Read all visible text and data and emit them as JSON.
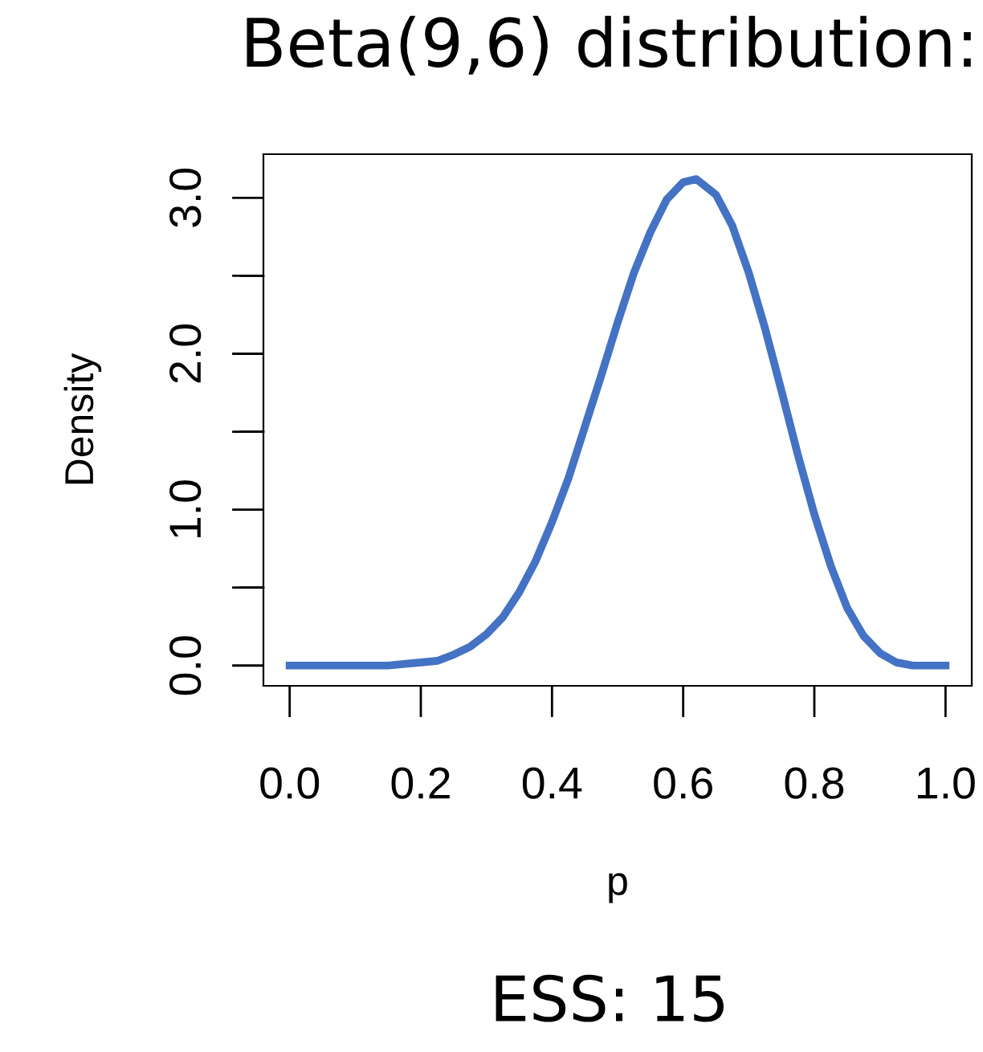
{
  "chart_data": {
    "type": "line",
    "title": "Beta(9,6) distribution:",
    "xlabel": "p",
    "ylabel": "Density",
    "annotations": [
      "ESS: 15"
    ],
    "x": [
      0,
      0.05,
      0.1,
      0.15,
      0.2,
      0.225,
      0.25,
      0.275,
      0.3,
      0.325,
      0.35,
      0.375,
      0.4,
      0.425,
      0.45,
      0.475,
      0.5,
      0.525,
      0.55,
      0.575,
      0.6,
      0.62,
      0.65,
      0.675,
      0.7,
      0.725,
      0.75,
      0.775,
      0.8,
      0.825,
      0.85,
      0.875,
      0.9,
      0.925,
      0.95,
      1.0
    ],
    "series": [
      {
        "color": "#4472c4",
        "values": [
          0,
          0,
          0,
          0,
          0.02,
          0.03,
          0.07,
          0.12,
          0.2,
          0.31,
          0.47,
          0.67,
          0.92,
          1.2,
          1.53,
          1.86,
          2.2,
          2.52,
          2.78,
          2.99,
          3.1,
          3.12,
          3.02,
          2.82,
          2.52,
          2.16,
          1.76,
          1.35,
          0.97,
          0.64,
          0.37,
          0.19,
          0.08,
          0.02,
          0,
          0
        ]
      }
    ],
    "xlim": [
      -0.04,
      1.04
    ],
    "ylim": [
      -0.13,
      3.28
    ],
    "xticks": [
      {
        "value": 0,
        "label": "0.0"
      },
      0.2,
      0.4,
      0.6,
      0.8,
      {
        "value": 1,
        "label": "1.0"
      }
    ],
    "yticks": [
      {
        "value": 0,
        "label": "0.0"
      },
      {
        "value": 0.5,
        "label": null
      },
      {
        "value": 1,
        "label": "1.0"
      },
      {
        "value": 1.5,
        "label": null
      },
      {
        "value": 2,
        "label": "2.0"
      },
      {
        "value": 2.5,
        "label": null
      },
      {
        "value": 3,
        "label": "3.0"
      }
    ],
    "grid": false,
    "marker": "none",
    "line_style": "solid"
  }
}
